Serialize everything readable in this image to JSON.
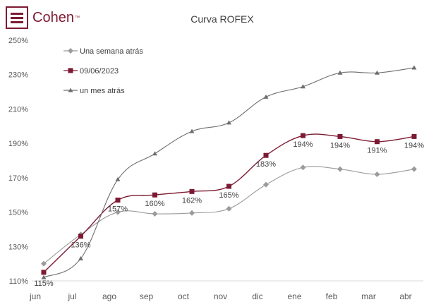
{
  "brand": {
    "name": "Cohen",
    "trademark": "™",
    "color": "#7d1a33"
  },
  "chart_data": {
    "type": "line",
    "title": "Curva ROFEX",
    "xlabel": "",
    "ylabel": "",
    "categories": [
      "jun",
      "jul",
      "ago",
      "sep",
      "oct",
      "nov",
      "dic",
      "ene",
      "feb",
      "mar",
      "abr"
    ],
    "y_ticks": [
      "110%",
      "130%",
      "150%",
      "170%",
      "190%",
      "210%",
      "230%",
      "250%"
    ],
    "ylim": [
      110,
      250
    ],
    "grid": false,
    "legend_position": "top-left",
    "series": [
      {
        "name": "Una semana atrás",
        "marker": "diamond",
        "color": "#9b9b9b",
        "values": [
          120,
          137,
          150,
          149,
          149.5,
          152,
          166,
          176,
          175,
          172,
          175
        ]
      },
      {
        "name": "09/06/2023",
        "marker": "square",
        "color": "#7d1a33",
        "values": [
          115,
          136,
          157,
          160,
          162,
          165,
          183,
          194.5,
          194,
          191,
          194
        ],
        "data_labels": [
          "115%",
          "136%",
          "157%",
          "160%",
          "162%",
          "165%",
          "183%",
          "194%",
          "194%",
          "191%",
          "194%"
        ]
      },
      {
        "name": "un mes atrás",
        "marker": "triangle",
        "color": "#6e6e6e",
        "values": [
          112,
          123,
          169,
          184,
          197,
          202,
          217,
          223,
          231,
          231,
          234
        ]
      }
    ]
  }
}
